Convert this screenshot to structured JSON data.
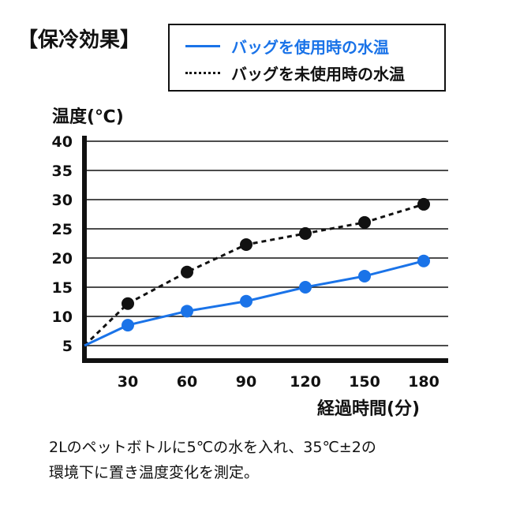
{
  "title": "【保冷効果】",
  "note": {
    "line1": "2Lのペットボトルに5℃の水を入れ、35℃±2の",
    "line2": "環境下に置き温度変化を測定。"
  },
  "chart_data": {
    "type": "line",
    "xlabel": "経過時間(分)",
    "ylabel": "温度(℃)",
    "x": [
      0,
      30,
      60,
      90,
      120,
      150,
      180
    ],
    "x_tick_labels": [
      "30",
      "60",
      "90",
      "120",
      "150",
      "180"
    ],
    "y_ticks": [
      5,
      10,
      15,
      20,
      25,
      30,
      35,
      40
    ],
    "ylim": [
      5,
      40
    ],
    "grid": true,
    "legend_position": "top-right",
    "series": [
      {
        "name": "バッグを使用時の水温",
        "color": "#1a73e8",
        "style": "solid",
        "values": [
          5,
          8.5,
          10.9,
          12.6,
          15.0,
          16.9,
          19.5
        ]
      },
      {
        "name": "バッグを未使用時の水温",
        "color": "#111111",
        "style": "dotted",
        "values": [
          5,
          12.2,
          17.6,
          22.3,
          24.2,
          26.1,
          29.2
        ]
      }
    ]
  }
}
